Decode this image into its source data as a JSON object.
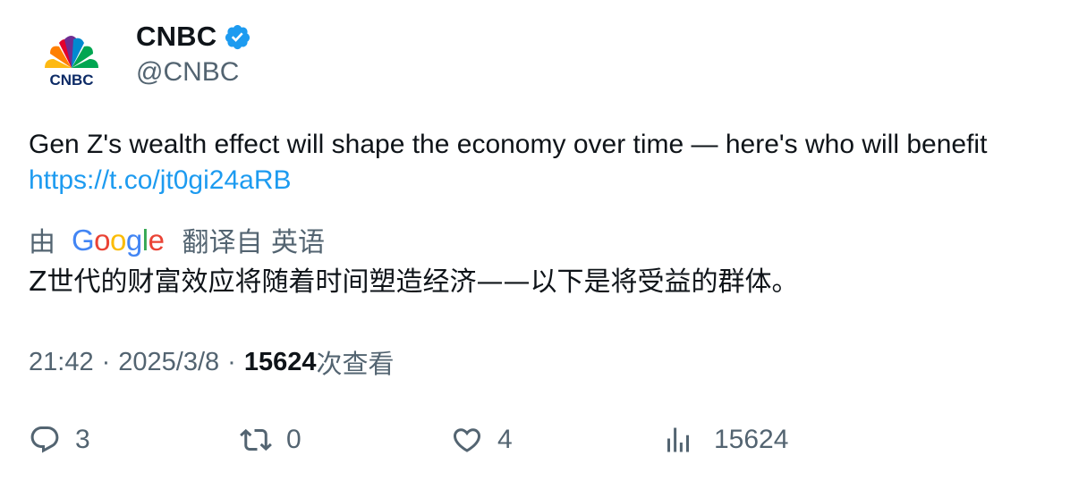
{
  "author": {
    "display_name": "CNBC",
    "handle": "@CNBC",
    "verified": true,
    "avatar_text": "CNBC",
    "avatar_icon": "cnbc-peacock-logo"
  },
  "tweet": {
    "text": "Gen Z's wealth effect will shape the economy over time — here's who will benefit ",
    "link": "https://t.co/jt0gi24aRB"
  },
  "translation": {
    "by_label": "由",
    "provider": "Google",
    "from_label": "翻译自 英语",
    "text": "Z世代的财富效应将随着时间塑造经济——以下是将受益的群体。"
  },
  "meta": {
    "time": "21:42",
    "separator": "·",
    "date": "2025/3/8",
    "views": "15624",
    "views_label": "次查看"
  },
  "actions": {
    "replies": "3",
    "retweets": "0",
    "likes": "4",
    "views": "15624"
  },
  "colors": {
    "link": "#1d9bf0",
    "secondary_text": "#536471",
    "primary_text": "#0f1419",
    "verified_badge": "#1d9bf0"
  }
}
